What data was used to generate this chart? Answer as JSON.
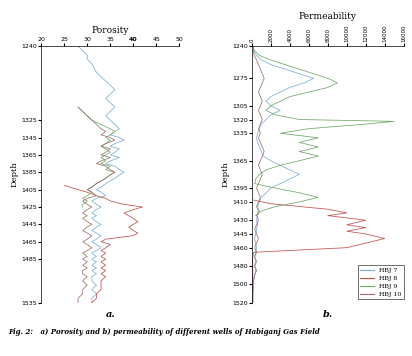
{
  "title_a": "Porosity",
  "title_b": "Permeability",
  "ylabel": "Depth",
  "caption": "Fig. 2:   a) Porosity and b) permeability of different wells of Habiganj Gas Field",
  "colors": {
    "HBJ7": "#7bafd4",
    "HBJ8": "#c0504d",
    "HBJ9": "#70a868",
    "HBJ10": "#9b7070"
  },
  "legend_labels": [
    "HBJ 7",
    "HBJ 8",
    "HBJ 9",
    "HBJ 10"
  ],
  "porosity": {
    "xlim": [
      20,
      50
    ],
    "xticks": [
      20,
      25,
      30,
      35,
      40,
      45,
      50
    ],
    "ylim": [
      1535,
      1240
    ],
    "yticks": [
      1240,
      1325,
      1345,
      1365,
      1385,
      1405,
      1425,
      1445,
      1465,
      1485,
      1535
    ],
    "HBJ7": {
      "depth": [
        1240,
        1245,
        1250,
        1255,
        1260,
        1270,
        1275,
        1280,
        1285,
        1290,
        1295,
        1300,
        1305,
        1310,
        1315,
        1320,
        1325,
        1330,
        1335,
        1338,
        1342,
        1345,
        1348,
        1352,
        1355,
        1358,
        1362,
        1365,
        1368,
        1372,
        1375,
        1378,
        1382,
        1385,
        1388,
        1392,
        1395,
        1398,
        1402,
        1405,
        1408,
        1412,
        1415,
        1418,
        1422,
        1425,
        1428,
        1432,
        1435,
        1438,
        1442,
        1445,
        1448,
        1452,
        1455,
        1458,
        1462,
        1465,
        1468,
        1472,
        1475,
        1478,
        1482,
        1485,
        1488,
        1492,
        1495,
        1498,
        1502,
        1505,
        1510,
        1515,
        1520,
        1525,
        1530,
        1535
      ],
      "value": [
        28,
        29,
        30,
        30,
        31,
        32,
        33,
        34,
        35,
        36,
        35,
        34,
        35,
        36,
        35,
        34,
        35,
        36,
        37,
        36,
        35,
        37,
        38,
        36,
        35,
        37,
        36,
        35,
        37,
        35,
        34,
        36,
        37,
        38,
        37,
        36,
        35,
        34,
        33,
        32,
        33,
        34,
        32,
        31,
        32,
        33,
        32,
        31,
        32,
        31,
        32,
        33,
        32,
        31,
        32,
        33,
        32,
        31,
        32,
        33,
        32,
        31,
        32,
        31,
        32,
        31,
        32,
        31,
        32,
        31,
        31,
        32,
        31,
        32,
        31,
        31
      ]
    },
    "HBJ8": {
      "depth": [
        1400,
        1405,
        1408,
        1412,
        1415,
        1418,
        1422,
        1425,
        1428,
        1432,
        1435,
        1438,
        1442,
        1445,
        1448,
        1452,
        1455,
        1458,
        1462,
        1465,
        1468,
        1472,
        1475,
        1478,
        1482,
        1485,
        1488,
        1492,
        1495,
        1498,
        1502,
        1505,
        1510,
        1515,
        1520,
        1525,
        1530,
        1535
      ],
      "value": [
        25,
        28,
        30,
        32,
        34,
        35,
        38,
        42,
        40,
        38,
        39,
        40,
        41,
        40,
        39,
        40,
        41,
        40,
        34,
        33,
        35,
        34,
        33,
        34,
        33,
        34,
        33,
        34,
        33,
        34,
        33,
        34,
        33,
        33,
        33,
        32,
        32,
        31
      ]
    },
    "HBJ9": {
      "depth": [
        1310,
        1315,
        1320,
        1325,
        1330,
        1335,
        1338,
        1342,
        1345,
        1348,
        1352,
        1355,
        1358,
        1362,
        1365,
        1368,
        1372,
        1375,
        1378,
        1382,
        1385,
        1388,
        1392,
        1395,
        1398,
        1402,
        1405,
        1408,
        1412,
        1415,
        1418,
        1422,
        1425
      ],
      "value": [
        28,
        29,
        30,
        31,
        33,
        35,
        36,
        35,
        34,
        35,
        34,
        33,
        34,
        35,
        34,
        33,
        34,
        33,
        35,
        34,
        36,
        35,
        34,
        33,
        32,
        31,
        30,
        31,
        30,
        29,
        30,
        29,
        29
      ]
    },
    "HBJ10": {
      "depth": [
        1310,
        1315,
        1320,
        1325,
        1330,
        1335,
        1338,
        1342,
        1345,
        1348,
        1352,
        1355,
        1358,
        1362,
        1365,
        1368,
        1372,
        1375,
        1378,
        1382,
        1385,
        1388,
        1392,
        1395,
        1398,
        1402,
        1405,
        1408,
        1412,
        1415,
        1418,
        1422,
        1425,
        1428,
        1432,
        1435,
        1438,
        1442,
        1445,
        1448,
        1452,
        1455,
        1458,
        1462,
        1465,
        1468,
        1472,
        1475,
        1478,
        1482,
        1485,
        1488,
        1492,
        1495,
        1498,
        1502,
        1505,
        1510,
        1515,
        1520,
        1525,
        1530,
        1535
      ],
      "value": [
        28,
        29,
        30,
        31,
        32,
        33,
        34,
        33,
        35,
        36,
        34,
        33,
        35,
        34,
        33,
        35,
        33,
        32,
        34,
        35,
        36,
        35,
        34,
        33,
        32,
        31,
        30,
        31,
        32,
        30,
        29,
        30,
        31,
        30,
        29,
        30,
        29,
        30,
        31,
        30,
        29,
        30,
        31,
        30,
        29,
        30,
        31,
        30,
        29,
        30,
        29,
        30,
        29,
        30,
        29,
        29,
        30,
        29,
        30,
        29,
        29,
        28,
        28
      ]
    }
  },
  "permeability": {
    "xlim": [
      0,
      16000
    ],
    "xticks": [
      0,
      2000,
      4000,
      6000,
      8000,
      10000,
      12000,
      14000,
      16000
    ],
    "ylim": [
      1520,
      1240
    ],
    "yticks": [
      1240,
      1275,
      1305,
      1320,
      1335,
      1365,
      1395,
      1410,
      1430,
      1445,
      1460,
      1480,
      1500,
      1520
    ],
    "HBJ7": {
      "depth": [
        1240,
        1245,
        1250,
        1255,
        1260,
        1265,
        1270,
        1275,
        1280,
        1285,
        1290,
        1295,
        1300,
        1305,
        1310,
        1315,
        1320,
        1325,
        1330,
        1335,
        1340,
        1345,
        1350,
        1355,
        1360,
        1365,
        1370,
        1375,
        1380,
        1385,
        1390,
        1395,
        1400,
        1405,
        1410,
        1415,
        1420,
        1425,
        1430,
        1435,
        1440,
        1445,
        1450,
        1455,
        1460,
        1465,
        1470,
        1475,
        1480,
        1485,
        1490,
        1495,
        1500,
        1505,
        1510,
        1515,
        1520
      ],
      "value": [
        100,
        200,
        500,
        1000,
        2000,
        3500,
        5000,
        6500,
        5500,
        4000,
        3000,
        2000,
        1500,
        2000,
        3000,
        2000,
        1500,
        1000,
        800,
        600,
        500,
        600,
        800,
        1000,
        1200,
        2000,
        3000,
        4000,
        5000,
        4000,
        3000,
        2000,
        1500,
        1000,
        800,
        600,
        800,
        600,
        500,
        600,
        500,
        400,
        300,
        400,
        500,
        400,
        300,
        400,
        300,
        400,
        300,
        200,
        100,
        200,
        100,
        100,
        100
      ]
    },
    "HBJ8": {
      "depth": [
        1408,
        1412,
        1415,
        1418,
        1422,
        1425,
        1430,
        1435,
        1438,
        1442,
        1445,
        1450,
        1455,
        1460,
        1465,
        1470,
        1475,
        1480,
        1485,
        1490,
        1495,
        1500,
        1505,
        1510,
        1515,
        1520
      ],
      "value": [
        200,
        2000,
        5000,
        8000,
        10000,
        8000,
        12000,
        10000,
        12000,
        10000,
        12000,
        14000,
        12000,
        10000,
        200,
        100,
        100,
        100,
        100,
        100,
        100,
        100,
        100,
        100,
        100,
        100
      ]
    },
    "HBJ9": {
      "depth": [
        1240,
        1245,
        1250,
        1255,
        1260,
        1265,
        1270,
        1275,
        1280,
        1285,
        1290,
        1295,
        1300,
        1305,
        1310,
        1315,
        1320,
        1322,
        1325,
        1330,
        1335,
        1340,
        1345,
        1350,
        1355,
        1360,
        1365,
        1370,
        1375,
        1380,
        1385,
        1390,
        1395,
        1400,
        1405,
        1410,
        1415,
        1420,
        1425
      ],
      "value": [
        100,
        300,
        800,
        2000,
        3500,
        5000,
        6500,
        8000,
        9000,
        8000,
        6000,
        4000,
        3000,
        2000,
        1500,
        2500,
        5000,
        15000,
        12000,
        6000,
        3000,
        7000,
        5000,
        7000,
        5000,
        7000,
        5000,
        3000,
        1500,
        800,
        400,
        300,
        2500,
        5000,
        7000,
        5000,
        2500,
        1000,
        400
      ]
    },
    "HBJ10": {
      "depth": [
        1240,
        1245,
        1250,
        1255,
        1260,
        1265,
        1270,
        1275,
        1280,
        1285,
        1290,
        1295,
        1300,
        1305,
        1310,
        1315,
        1320,
        1325,
        1330,
        1335,
        1340,
        1345,
        1350,
        1355,
        1360,
        1365,
        1370,
        1375,
        1380,
        1385,
        1390,
        1395,
        1400,
        1405,
        1410,
        1415,
        1420,
        1425,
        1430,
        1435,
        1440,
        1445,
        1450,
        1455,
        1460,
        1465,
        1470,
        1475,
        1480,
        1485,
        1490,
        1495,
        1500,
        1505,
        1510,
        1515,
        1520
      ],
      "value": [
        100,
        150,
        250,
        500,
        700,
        900,
        1100,
        1300,
        1100,
        900,
        700,
        900,
        1100,
        900,
        700,
        900,
        1100,
        900,
        700,
        900,
        700,
        900,
        1100,
        1300,
        1100,
        900,
        700,
        900,
        1100,
        900,
        700,
        500,
        700,
        900,
        700,
        500,
        700,
        500,
        700,
        500,
        300,
        500,
        700,
        500,
        300,
        500,
        300,
        500,
        300,
        500,
        300,
        200,
        150,
        100,
        100,
        100,
        100
      ]
    }
  }
}
